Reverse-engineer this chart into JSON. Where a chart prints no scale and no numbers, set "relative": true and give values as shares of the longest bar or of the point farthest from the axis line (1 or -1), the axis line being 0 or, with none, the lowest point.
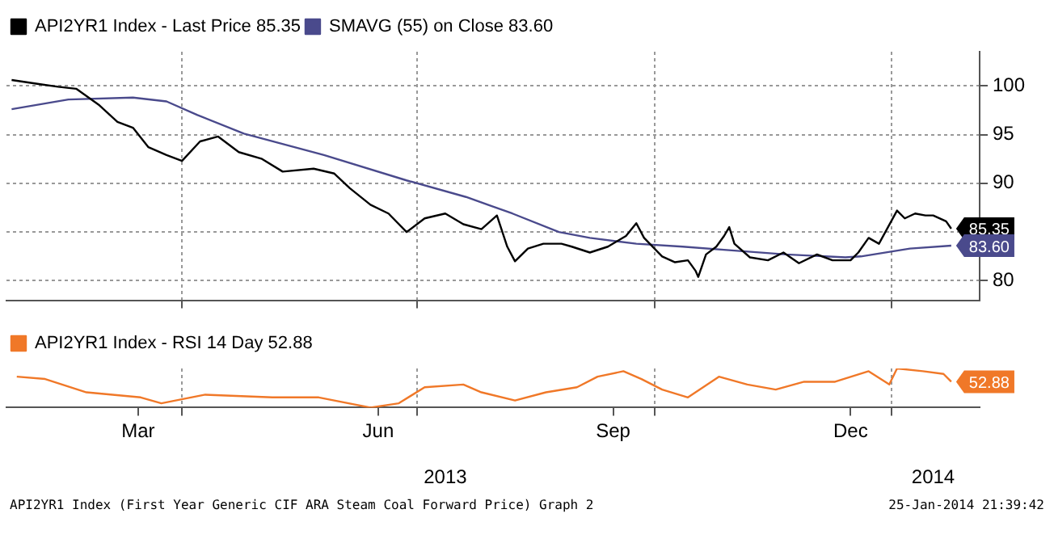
{
  "chart_data": [
    {
      "type": "line",
      "tick_labels": "y",
      "grid": true,
      "legend": "top left",
      "marker": "none",
      "xlim": [
        "2013-01-23",
        "2014-02-04"
      ],
      "xticks": [
        {
          "value": "2013-04-01",
          "label": null
        },
        {
          "value": "2013-07-01",
          "label": null
        },
        {
          "value": "2013-10-01",
          "label": null
        },
        {
          "value": "2014-01-01",
          "label": null
        }
      ],
      "ylim": [
        78,
        103.5
      ],
      "yticks": [
        80,
        {
          "value": 85,
          "label": null
        },
        90,
        95,
        100
      ],
      "series": [
        {
          "name": "API2YR1 Index - Last Price 85.35",
          "color": "#000000",
          "x": [
            "2013-01-25",
            "2013-02-04",
            "2013-02-12",
            "2013-02-19",
            "2013-02-28",
            "2013-03-07",
            "2013-03-13",
            "2013-03-19",
            "2013-03-26",
            "2013-04-01",
            "2013-04-08",
            "2013-04-15",
            "2013-04-23",
            "2013-05-02",
            "2013-05-10",
            "2013-05-22",
            "2013-05-30",
            "2013-06-05",
            "2013-06-13",
            "2013-06-20",
            "2013-06-27",
            "2013-07-04",
            "2013-07-12",
            "2013-07-19",
            "2013-07-26",
            "2013-08-01",
            "2013-08-05",
            "2013-08-08",
            "2013-08-13",
            "2013-08-19",
            "2013-08-26",
            "2013-08-30",
            "2013-09-06",
            "2013-09-13",
            "2013-09-20",
            "2013-09-24",
            "2013-09-27",
            "2013-10-04",
            "2013-10-09",
            "2013-10-14",
            "2013-10-17",
            "2013-10-18",
            "2013-10-21",
            "2013-10-25",
            "2013-10-28",
            "2013-10-30",
            "2013-11-01",
            "2013-11-07",
            "2013-11-14",
            "2013-11-20",
            "2013-11-26",
            "2013-12-03",
            "2013-12-09",
            "2013-12-16",
            "2013-12-19",
            "2013-12-23",
            "2013-12-27",
            "2014-01-03",
            "2014-01-06",
            "2014-01-10",
            "2014-01-14",
            "2014-01-17",
            "2014-01-22",
            "2014-01-24"
          ],
          "values": [
            100.6,
            100.2,
            99.9,
            99.7,
            98.0,
            96.3,
            95.7,
            93.7,
            92.9,
            92.3,
            94.3,
            94.8,
            93.2,
            92.5,
            91.2,
            91.5,
            91.0,
            89.5,
            87.8,
            86.9,
            85.0,
            86.4,
            86.9,
            85.8,
            85.3,
            86.7,
            83.5,
            82.0,
            83.3,
            83.8,
            83.8,
            83.5,
            82.9,
            83.5,
            84.6,
            85.9,
            84.4,
            82.5,
            81.9,
            82.1,
            81.0,
            80.4,
            82.7,
            83.5,
            84.6,
            85.5,
            83.8,
            82.4,
            82.1,
            82.9,
            81.8,
            82.7,
            82.1,
            82.1,
            82.9,
            84.4,
            83.8,
            87.2,
            86.4,
            86.9,
            86.7,
            86.7,
            86.1,
            85.35
          ],
          "value_labels": [
            null,
            null,
            null,
            null,
            null,
            null,
            null,
            null,
            null,
            null,
            null,
            null,
            null,
            null,
            null,
            null,
            null,
            null,
            null,
            null,
            null,
            null,
            null,
            null,
            null,
            null,
            null,
            null,
            null,
            null,
            null,
            null,
            null,
            null,
            null,
            null,
            null,
            null,
            null,
            null,
            null,
            null,
            null,
            null,
            null,
            null,
            null,
            null,
            null,
            null,
            null,
            null,
            null,
            null,
            null,
            null,
            null,
            null,
            null,
            null,
            null,
            null,
            null,
            "85.35"
          ]
        },
        {
          "name": "SMAVG (55) on Close 83.60",
          "color": "#4a4a8c",
          "x": [
            "2013-01-25",
            "2013-02-16",
            "2013-03-13",
            "2013-03-26",
            "2013-04-07",
            "2013-04-25",
            "2013-05-26",
            "2013-06-27",
            "2013-07-20",
            "2013-08-07",
            "2013-08-25",
            "2013-09-06",
            "2013-09-24",
            "2013-10-12",
            "2013-11-01",
            "2013-11-21",
            "2013-12-14",
            "2013-12-20",
            "2014-01-08",
            "2014-01-24"
          ],
          "values": [
            97.6,
            98.6,
            98.8,
            98.4,
            97.0,
            95.1,
            92.9,
            90.3,
            88.6,
            86.9,
            85.0,
            84.4,
            83.8,
            83.5,
            83.1,
            82.7,
            82.4,
            82.5,
            83.3,
            83.6
          ],
          "value_labels": [
            null,
            null,
            null,
            null,
            null,
            null,
            null,
            null,
            null,
            null,
            null,
            null,
            null,
            null,
            null,
            null,
            null,
            null,
            null,
            "83.60"
          ]
        }
      ]
    },
    {
      "type": "line",
      "relative": true,
      "tick_labels": "x",
      "grid": "x",
      "legend": "top left",
      "marker": "none",
      "xlim": [
        "2013-01-23",
        "2014-02-04"
      ],
      "xticks": [
        {
          "value": "2013-03-15",
          "label": "Mar"
        },
        {
          "value": "2013-04-01",
          "label": null
        },
        {
          "value": "2013-06-16",
          "label": "Jun"
        },
        {
          "value": "2013-07-01",
          "label": null
        },
        {
          "value": "2013-09-15",
          "label": "Sep"
        },
        {
          "value": "2013-10-01",
          "label": null
        },
        {
          "value": "2013-12-16",
          "label": "Dec"
        },
        {
          "value": "2014-01-01",
          "label": null
        }
      ],
      "x2lim": [
        "2013-01-23",
        "2014-02-04"
      ],
      "x2ticks": [
        {
          "value": "2013-07-12",
          "label": "2013"
        },
        {
          "value": "2014-01-17",
          "label": "2014"
        }
      ],
      "annotations": [
        "API2YR1 Index (First Year Generic CIF ARA Steam Coal Forward Price) Graph 2",
        "25-Jan-2014 21:39:42",
        {
          "text": "52.88",
          "x": "2014-01-24",
          "y": 0.66
        }
      ],
      "series": [
        {
          "name": "API2YR1 Index - RSI 14 Day 52.88",
          "color": "#f07828",
          "x": [
            "2013-01-27",
            "2013-02-07",
            "2013-02-23",
            "2013-03-16",
            "2013-03-24",
            "2013-04-10",
            "2013-05-06",
            "2013-05-24",
            "2013-06-13",
            "2013-06-24",
            "2013-07-04",
            "2013-07-19",
            "2013-07-26",
            "2013-08-08",
            "2013-08-20",
            "2013-09-01",
            "2013-09-09",
            "2013-09-19",
            "2013-09-26",
            "2013-10-04",
            "2013-10-14",
            "2013-10-26",
            "2013-11-06",
            "2013-11-17",
            "2013-11-28",
            "2013-12-10",
            "2013-12-23",
            "2013-12-31",
            "2014-01-03",
            "2014-01-13",
            "2014-01-21",
            "2014-01-24"
          ],
          "values": [
            0.79,
            0.73,
            0.39,
            0.26,
            0.11,
            0.33,
            0.26,
            0.26,
            0,
            0.11,
            0.52,
            0.59,
            0.39,
            0.18,
            0.39,
            0.52,
            0.79,
            0.93,
            0.73,
            0.46,
            0.26,
            0.79,
            0.59,
            0.46,
            0.66,
            0.66,
            0.93,
            0.59,
            1,
            0.93,
            0.86,
            0.66
          ]
        }
      ]
    }
  ]
}
